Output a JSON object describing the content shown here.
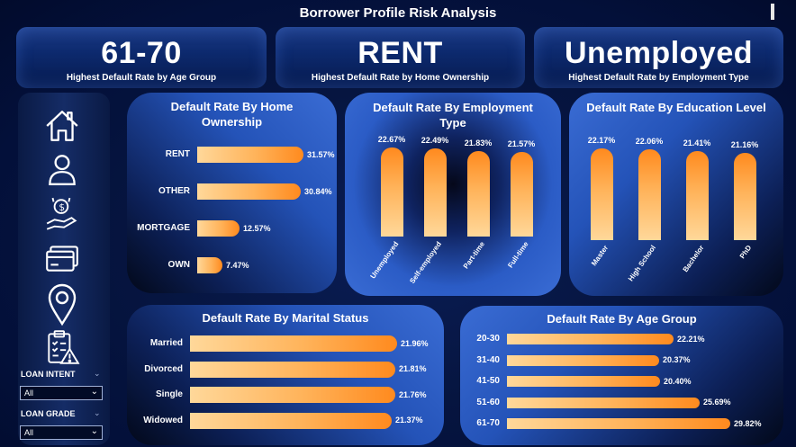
{
  "title": "Borrower Profile Risk Analysis",
  "kpis": [
    {
      "value": "61-70",
      "label": "Highest Default Rate by Age Group"
    },
    {
      "value": "RENT",
      "label": "Highest Default Rate by Home Ownership"
    },
    {
      "value": "Unemployed",
      "label": "Highest Default Rate by Employment Type"
    }
  ],
  "nav_icons": [
    "home-icon",
    "user-icon",
    "money-hand-icon",
    "credit-card-icon",
    "location-pin-icon",
    "risk-clipboard-icon"
  ],
  "slicers": [
    {
      "label": "LOAN INTENT",
      "value": "All"
    },
    {
      "label": "LOAN GRADE",
      "value": "All"
    }
  ],
  "colors": {
    "bar_start": "#ffd89a",
    "bar_end": "#ff8a1e",
    "panel_blue": "#3a6cd4",
    "background": "#061540"
  },
  "chart_data": [
    {
      "type": "bar",
      "orientation": "horizontal",
      "title": "Default Rate By Home Ownership",
      "categories": [
        "RENT",
        "OTHER",
        "MORTGAGE",
        "OWN"
      ],
      "values": [
        31.57,
        30.84,
        12.57,
        7.47
      ],
      "labels": [
        "31.57%",
        "30.84%",
        "12.57%",
        "7.47%"
      ]
    },
    {
      "type": "bar",
      "orientation": "vertical",
      "title": "Default Rate By Employment Type",
      "categories": [
        "Unemployed",
        "Self-employed",
        "Part-time",
        "Full-time"
      ],
      "values": [
        22.67,
        22.49,
        21.83,
        21.57
      ],
      "labels": [
        "22.67%",
        "22.49%",
        "21.83%",
        "21.57%"
      ]
    },
    {
      "type": "bar",
      "orientation": "vertical",
      "title": "Default Rate By Education Level",
      "categories": [
        "Master",
        "High School",
        "Bachelor",
        "PhD"
      ],
      "values": [
        22.17,
        22.06,
        21.41,
        21.16
      ],
      "labels": [
        "22.17%",
        "22.06%",
        "21.41%",
        "21.16%"
      ]
    },
    {
      "type": "bar",
      "orientation": "horizontal",
      "title": "Default Rate By Marital Status",
      "categories": [
        "Married",
        "Divorced",
        "Single",
        "Widowed"
      ],
      "values": [
        21.96,
        21.81,
        21.76,
        21.37
      ],
      "labels": [
        "21.96%",
        "21.81%",
        "21.76%",
        "21.37%"
      ]
    },
    {
      "type": "bar",
      "orientation": "horizontal",
      "title": "Default Rate By Age Group",
      "categories": [
        "20-30",
        "31-40",
        "41-50",
        "51-60",
        "61-70"
      ],
      "values": [
        22.21,
        20.37,
        20.4,
        25.69,
        29.82
      ],
      "labels": [
        "22.21%",
        "20.37%",
        "20.40%",
        "25.69%",
        "29.82%"
      ]
    }
  ]
}
